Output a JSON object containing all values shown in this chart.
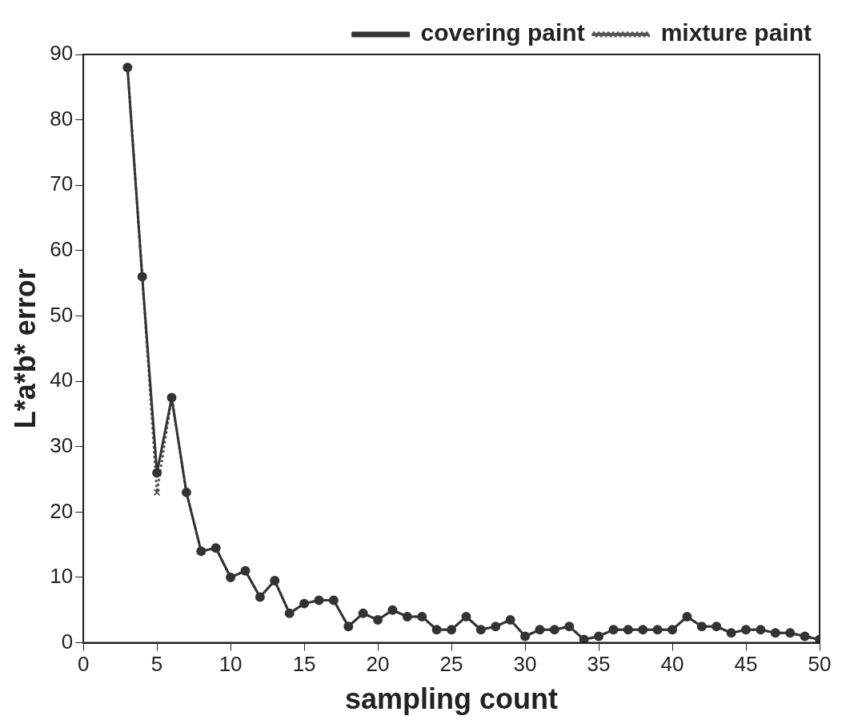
{
  "chart_data": {
    "type": "line",
    "xlabel": "sampling count",
    "ylabel": "L*a*b* error",
    "x": [
      3,
      4,
      5,
      6,
      7,
      8,
      9,
      10,
      11,
      12,
      13,
      14,
      15,
      16,
      17,
      18,
      19,
      20,
      21,
      22,
      23,
      24,
      25,
      26,
      27,
      28,
      29,
      30,
      31,
      32,
      33,
      34,
      35,
      36,
      37,
      38,
      39,
      40,
      41,
      42,
      43,
      44,
      45,
      46,
      47,
      48,
      49,
      50
    ],
    "series": [
      {
        "name": "covering paint",
        "color": "#333333",
        "marker": "circle",
        "line_style": "solid",
        "values": [
          88,
          56,
          26,
          37.5,
          23,
          14,
          14.5,
          10,
          11,
          7,
          9.5,
          4.5,
          6,
          6.5,
          6.5,
          2.5,
          4.5,
          3.5,
          5,
          4,
          4,
          2,
          2,
          4,
          2,
          2.5,
          3.5,
          1,
          2,
          2,
          2.5,
          0.5,
          1,
          2,
          2,
          2,
          2,
          2,
          4,
          2.5,
          2.5,
          1.5,
          2,
          2,
          1.5,
          1.5,
          1,
          0.5
        ]
      },
      {
        "name": "mixture paint",
        "color": "#555555",
        "marker": "cross",
        "line_style": "dotted",
        "values": [
          88,
          56,
          23,
          37.5,
          23,
          14,
          14.5,
          10,
          11,
          7,
          9.5,
          4.5,
          6,
          6.5,
          6.5,
          2.5,
          4.5,
          3.5,
          5,
          4,
          4,
          2,
          2,
          4,
          2,
          2.5,
          3.5,
          1,
          2,
          2,
          2.5,
          0.5,
          1,
          2,
          2,
          2,
          2,
          2,
          4,
          2.5,
          2.5,
          1.5,
          2,
          2,
          1.5,
          1.5,
          1,
          0.5
        ]
      }
    ],
    "xlim": [
      0,
      50
    ],
    "xticks": [
      0,
      5,
      10,
      15,
      20,
      25,
      30,
      35,
      40,
      45,
      50
    ],
    "ylim": [
      0,
      90
    ],
    "yticks": [
      0,
      10,
      20,
      30,
      40,
      50,
      60,
      70,
      80,
      90
    ],
    "grid": false,
    "legend": "top right"
  }
}
